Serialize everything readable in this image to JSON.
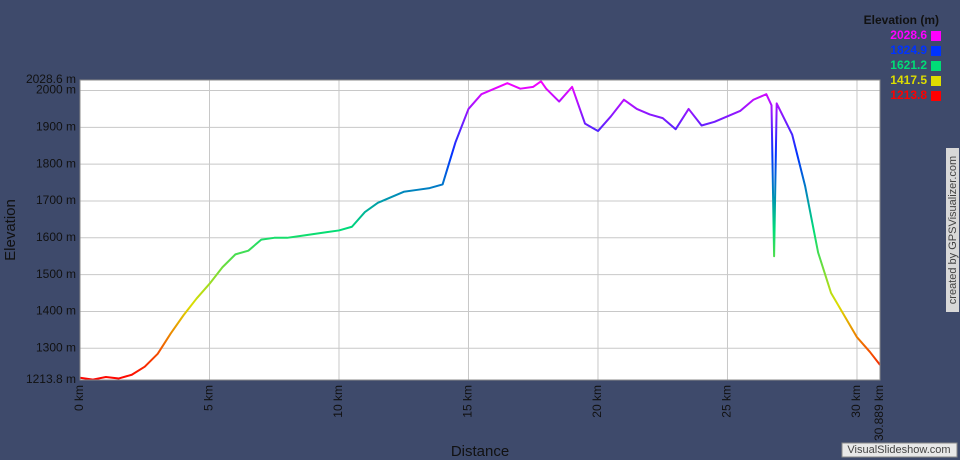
{
  "chart_data": {
    "type": "line",
    "x_label": "Distance",
    "y_label": "Elevation",
    "x": [
      0,
      0.5,
      1,
      1.5,
      2,
      2.5,
      3,
      3.5,
      4,
      4.5,
      5,
      5.5,
      6,
      6.5,
      7,
      7.5,
      8,
      8.5,
      9,
      9.5,
      10,
      10.5,
      11,
      11.5,
      12,
      12.5,
      13,
      13.5,
      14,
      14.5,
      15,
      15.5,
      16,
      16.5,
      17,
      17.5,
      17.8,
      18,
      18.5,
      19,
      19.5,
      20,
      20.5,
      21,
      21.5,
      22,
      22.5,
      23,
      23.5,
      24,
      24.5,
      25,
      25.5,
      26,
      26.5,
      26.7,
      26.8,
      26.9,
      27.5,
      28,
      28.5,
      29,
      29.5,
      30,
      30.5,
      30.889
    ],
    "values": [
      1220,
      1215,
      1222,
      1218,
      1228,
      1250,
      1285,
      1340,
      1390,
      1435,
      1475,
      1520,
      1555,
      1565,
      1595,
      1600,
      1600,
      1605,
      1610,
      1615,
      1620,
      1630,
      1670,
      1695,
      1710,
      1725,
      1730,
      1735,
      1745,
      1860,
      1950,
      1990,
      2005,
      2020,
      2005,
      2010,
      2025,
      2005,
      1970,
      2010,
      1910,
      1890,
      1930,
      1975,
      1950,
      1935,
      1925,
      1895,
      1950,
      1905,
      1915,
      1930,
      1945,
      1975,
      1990,
      1960,
      1550,
      1965,
      1880,
      1740,
      1560,
      1450,
      1390,
      1330,
      1290,
      1255
    ],
    "xlim": [
      0,
      30.889
    ],
    "xticks": [
      {
        "value": 0,
        "label": "0 km"
      },
      {
        "value": 5,
        "label": "5 km"
      },
      {
        "value": 10,
        "label": "10 km"
      },
      {
        "value": 15,
        "label": "15 km"
      },
      {
        "value": 20,
        "label": "20 km"
      },
      {
        "value": 25,
        "label": "25 km"
      },
      {
        "value": 30,
        "label": "30 km"
      },
      {
        "value": 30.889,
        "label": "30.889 km"
      }
    ],
    "ylim": [
      1213.8,
      2028.6
    ],
    "yticks": [
      {
        "value": 1213.8,
        "label": "1213.8 m"
      },
      {
        "value": 1300,
        "label": "1300 m"
      },
      {
        "value": 1400,
        "label": "1400 m"
      },
      {
        "value": 1500,
        "label": "1500 m"
      },
      {
        "value": 1600,
        "label": "1600 m"
      },
      {
        "value": 1700,
        "label": "1700 m"
      },
      {
        "value": 1800,
        "label": "1800 m"
      },
      {
        "value": 1900,
        "label": "1900 m"
      },
      {
        "value": 2000,
        "label": "2000 m"
      },
      {
        "value": 2028.6,
        "label": "2028.6 m"
      }
    ],
    "grid": true,
    "legend": {
      "title": "Elevation (m)",
      "stops": [
        {
          "value": 2028.6,
          "color": "#ff00ff"
        },
        {
          "value": 1824.9,
          "color": "#0033ff"
        },
        {
          "value": 1621.2,
          "color": "#00dd77"
        },
        {
          "value": 1417.5,
          "color": "#dddd00"
        },
        {
          "value": 1213.8,
          "color": "#ff0000"
        }
      ]
    },
    "credits": [
      "created by GPSVisualizer.com",
      "VisualSlideshow.com"
    ]
  }
}
